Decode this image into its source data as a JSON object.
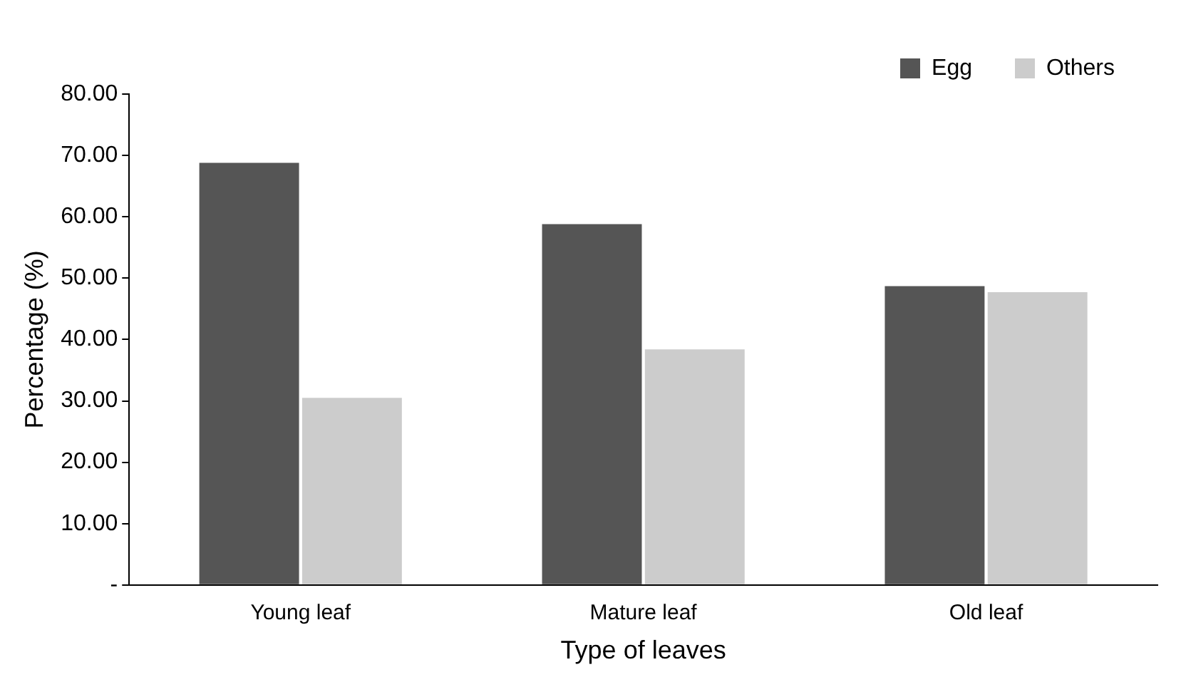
{
  "chart_data": {
    "type": "bar",
    "xlabel": "Type of leaves",
    "ylabel": "Percentage (%)",
    "categories": [
      "Young leaf",
      "Mature leaf",
      "Old leaf"
    ],
    "series": [
      {
        "name": "Egg",
        "color": "#555555",
        "values": [
          68.8,
          58.8,
          48.7
        ]
      },
      {
        "name": "Others",
        "color": "#cccccc",
        "values": [
          30.5,
          38.4,
          47.7
        ]
      }
    ],
    "ylim": [
      0,
      80
    ],
    "yticks": [
      {
        "value": 0,
        "label": "-"
      },
      {
        "value": 10,
        "label": "10.00"
      },
      {
        "value": 20,
        "label": "20.00"
      },
      {
        "value": 30,
        "label": "30.00"
      },
      {
        "value": 40,
        "label": "40.00"
      },
      {
        "value": 50,
        "label": "50.00"
      },
      {
        "value": 60,
        "label": "60.00"
      },
      {
        "value": 70,
        "label": "70.00"
      },
      {
        "value": 80,
        "label": "80.00"
      }
    ],
    "grid": false,
    "legend": "top right"
  }
}
